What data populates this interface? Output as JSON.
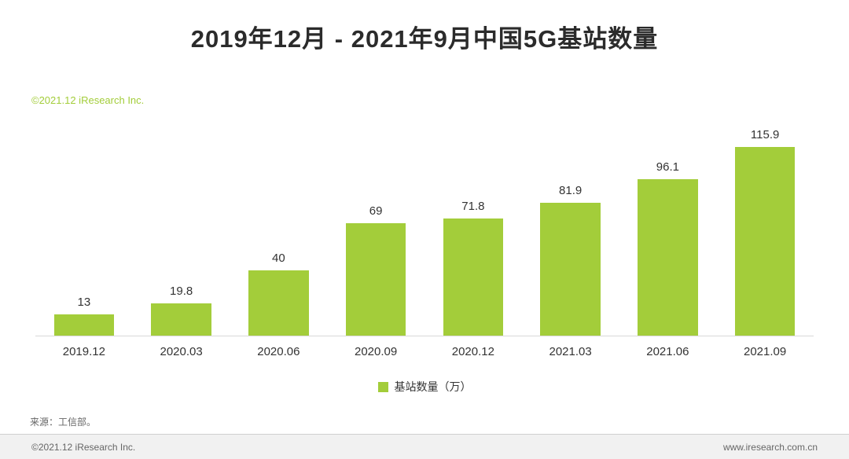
{
  "header": {
    "title": "2019年12月 - 2021年9月中国5G基站数量",
    "watermark": "©2021.12 iResearch Inc."
  },
  "chart_data": {
    "type": "bar",
    "title": "2019年12月 - 2021年9月中国5G基站数量",
    "categories": [
      "2019.12",
      "2020.03",
      "2020.06",
      "2020.09",
      "2020.12",
      "2021.03",
      "2021.06",
      "2021.09"
    ],
    "values": [
      13,
      19.8,
      40,
      69,
      71.8,
      81.9,
      96.1,
      115.9
    ],
    "legend": "基站数量（万）",
    "legend_position": "bottom",
    "bar_color": "#a3cd3a",
    "xlabel": "",
    "ylabel": "",
    "ylim": [
      0,
      130
    ],
    "grid": false
  },
  "source": {
    "label": "来源：工信部。"
  },
  "footer": {
    "left": "©2021.12 iResearch Inc.",
    "right": "www.iresearch.com.cn"
  }
}
